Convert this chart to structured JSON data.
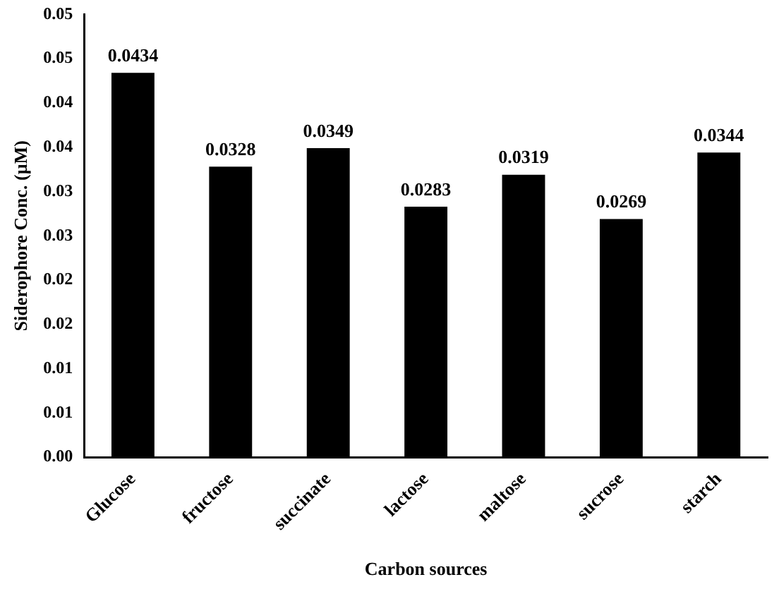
{
  "chart_data": {
    "type": "bar",
    "xlabel": "Carbon sources",
    "ylabel": "Siderophore Conc. (µM)",
    "categories": [
      "Glucose",
      "fructose",
      "succinate",
      "lactose",
      "maltose",
      "sucrose",
      "starch"
    ],
    "values": [
      0.0434,
      0.0328,
      0.0349,
      0.0283,
      0.0319,
      0.0269,
      0.0344
    ],
    "color": "#000000",
    "data_labels": true,
    "grid": false,
    "legend": false,
    "ylim": [
      0,
      0.05
    ],
    "yticks": [
      {
        "value": 0,
        "label": "0.00"
      },
      {
        "value": 0.005,
        "label": "0.01"
      },
      {
        "value": 0.01,
        "label": "0.01"
      },
      {
        "value": 0.015,
        "label": "0.02"
      },
      {
        "value": 0.02,
        "label": "0.02"
      },
      {
        "value": 0.025,
        "label": "0.03"
      },
      {
        "value": 0.03,
        "label": "0.03"
      },
      {
        "value": 0.035,
        "label": "0.04"
      },
      {
        "value": 0.04,
        "label": "0.04"
      },
      {
        "value": 0.045,
        "label": "0.05"
      },
      {
        "value": 0.05,
        "label": "0.05"
      }
    ]
  }
}
